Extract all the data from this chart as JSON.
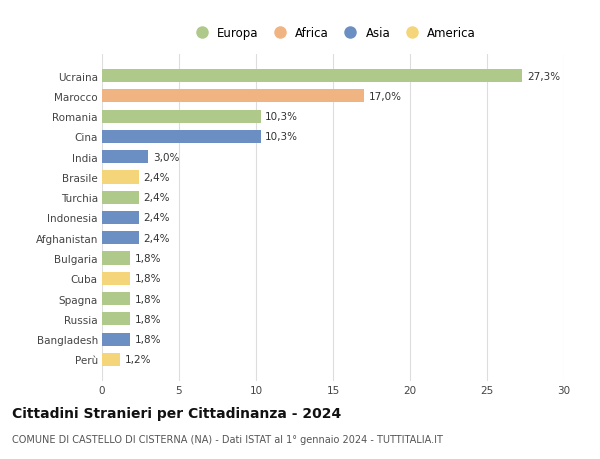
{
  "countries": [
    "Ucraina",
    "Marocco",
    "Romania",
    "Cina",
    "India",
    "Brasile",
    "Turchia",
    "Indonesia",
    "Afghanistan",
    "Bulgaria",
    "Cuba",
    "Spagna",
    "Russia",
    "Bangladesh",
    "Perù"
  ],
  "values": [
    27.3,
    17.0,
    10.3,
    10.3,
    3.0,
    2.4,
    2.4,
    2.4,
    2.4,
    1.8,
    1.8,
    1.8,
    1.8,
    1.8,
    1.2
  ],
  "labels": [
    "27,3%",
    "17,0%",
    "10,3%",
    "10,3%",
    "3,0%",
    "2,4%",
    "2,4%",
    "2,4%",
    "2,4%",
    "1,8%",
    "1,8%",
    "1,8%",
    "1,8%",
    "1,8%",
    "1,2%"
  ],
  "continents": [
    "Europa",
    "Africa",
    "Europa",
    "Asia",
    "Asia",
    "America",
    "Europa",
    "Asia",
    "Asia",
    "Europa",
    "America",
    "Europa",
    "Europa",
    "Asia",
    "America"
  ],
  "colors": {
    "Europa": "#aec98a",
    "Africa": "#f0b482",
    "Asia": "#6b8fc2",
    "America": "#f5d57a"
  },
  "legend_order": [
    "Europa",
    "Africa",
    "Asia",
    "America"
  ],
  "title": "Cittadini Stranieri per Cittadinanza - 2024",
  "subtitle": "COMUNE DI CASTELLO DI CISTERNA (NA) - Dati ISTAT al 1° gennaio 2024 - TUTTITALIA.IT",
  "xlim": [
    0,
    30
  ],
  "xticks": [
    0,
    5,
    10,
    15,
    20,
    25,
    30
  ],
  "bg_color": "#ffffff",
  "grid_color": "#dddddd",
  "bar_height": 0.65,
  "label_fontsize": 7.5,
  "title_fontsize": 10,
  "subtitle_fontsize": 7,
  "ytick_fontsize": 7.5,
  "xtick_fontsize": 7.5,
  "legend_fontsize": 8.5
}
